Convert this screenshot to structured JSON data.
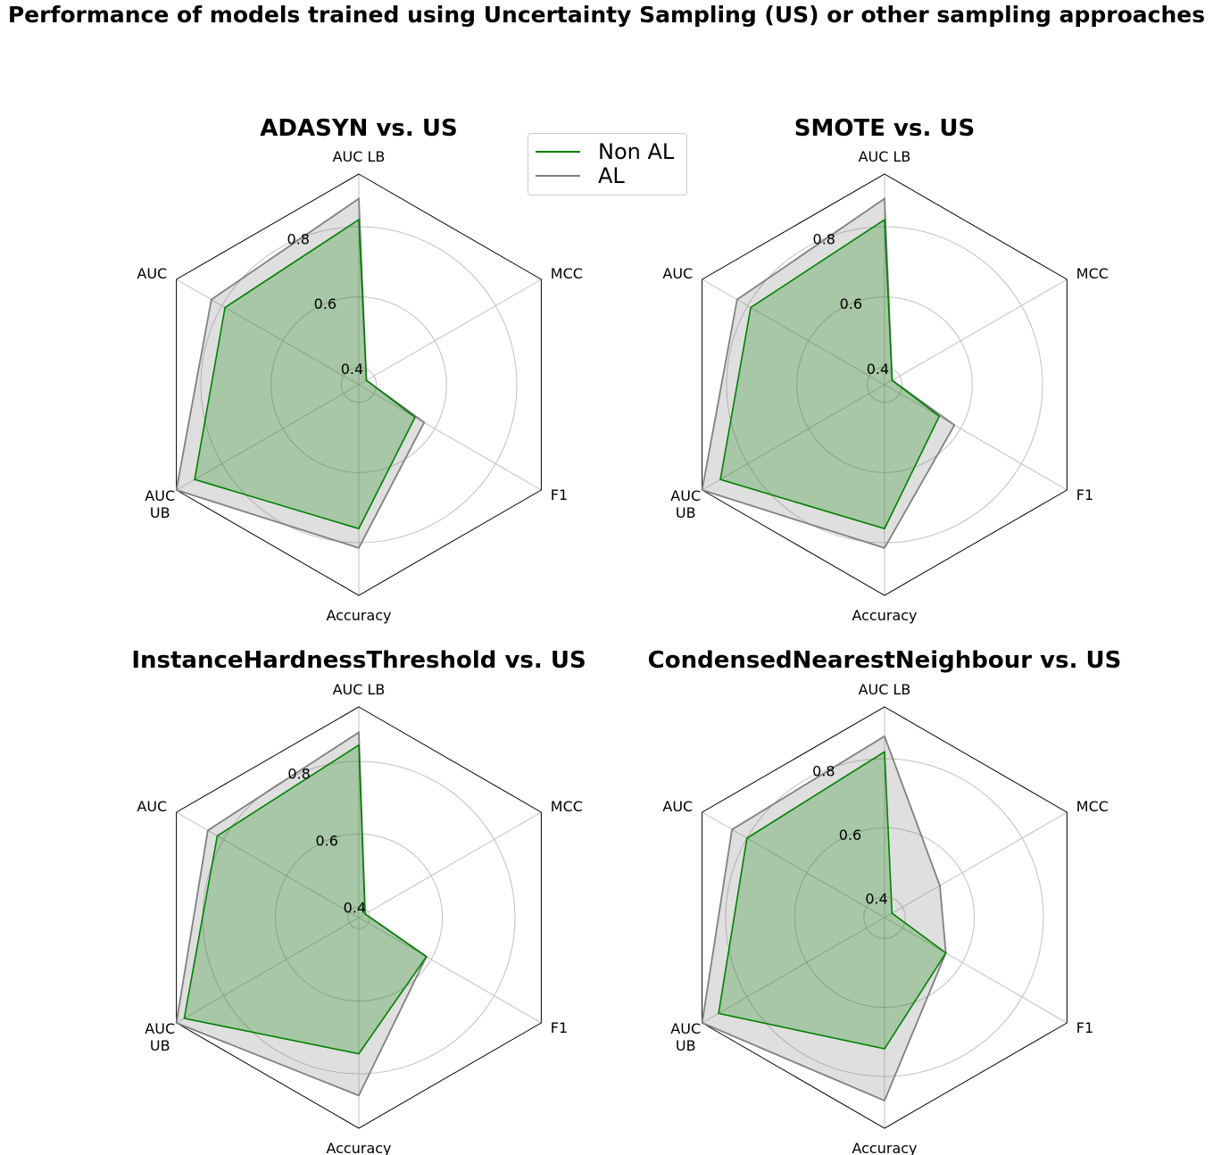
{
  "title": "Performance of models trained using Uncertainty Sampling (US) or other sampling approaches",
  "legend": {
    "non_al_label": "Non AL",
    "al_label": "AL",
    "non_al_color": "#008000",
    "al_color": "#808080"
  },
  "chart_data": [
    {
      "type": "radar",
      "title": "ADASYN vs. US",
      "axes": [
        "AUC LB",
        "MCC",
        "F1",
        "Accuracy",
        "AUC UB",
        "AUC"
      ],
      "rlim": [
        0.35,
        0.95
      ],
      "ring_ticks": [
        0.4,
        0.6,
        0.8
      ],
      "series": [
        {
          "name": "Non AL",
          "values": [
            0.82,
            0.375,
            0.535,
            0.76,
            0.89,
            0.79
          ]
        },
        {
          "name": "AL",
          "values": [
            0.88,
            0.375,
            0.565,
            0.815,
            0.95,
            0.835
          ]
        }
      ]
    },
    {
      "type": "radar",
      "title": "SMOTE vs. US",
      "axes": [
        "AUC LB",
        "MCC",
        "F1",
        "Accuracy",
        "AUC UB",
        "AUC"
      ],
      "rlim": [
        0.35,
        0.95
      ],
      "ring_ticks": [
        0.4,
        0.6,
        0.8
      ],
      "series": [
        {
          "name": "Non AL",
          "values": [
            0.82,
            0.375,
            0.53,
            0.76,
            0.89,
            0.79
          ]
        },
        {
          "name": "AL",
          "values": [
            0.88,
            0.375,
            0.58,
            0.815,
            0.95,
            0.835
          ]
        }
      ]
    },
    {
      "type": "radar",
      "title": "InstanceHardnessThreshold vs. US",
      "axes": [
        "AUC LB",
        "MCC",
        "F1",
        "Accuracy",
        "AUC UB",
        "AUC"
      ],
      "rlim": [
        0.37,
        0.95
      ],
      "ring_ticks": [
        0.4,
        0.6,
        0.8
      ],
      "series": [
        {
          "name": "Non AL",
          "values": [
            0.845,
            0.39,
            0.585,
            0.745,
            0.925,
            0.82
          ]
        },
        {
          "name": "AL",
          "values": [
            0.88,
            0.39,
            0.585,
            0.86,
            0.95,
            0.85
          ]
        }
      ]
    },
    {
      "type": "radar",
      "title": "CondensedNearestNeighbour vs. US",
      "axes": [
        "AUC LB",
        "MCC",
        "F1",
        "Accuracy",
        "AUC UB",
        "AUC"
      ],
      "rlim": [
        0.34,
        0.95
      ],
      "ring_ticks": [
        0.4,
        0.6,
        0.8
      ],
      "series": [
        {
          "name": "Non AL",
          "values": [
            0.82,
            0.365,
            0.545,
            0.72,
            0.895,
            0.8
          ]
        },
        {
          "name": "AL",
          "values": [
            0.865,
            0.525,
            0.545,
            0.87,
            0.95,
            0.85
          ]
        }
      ]
    }
  ]
}
